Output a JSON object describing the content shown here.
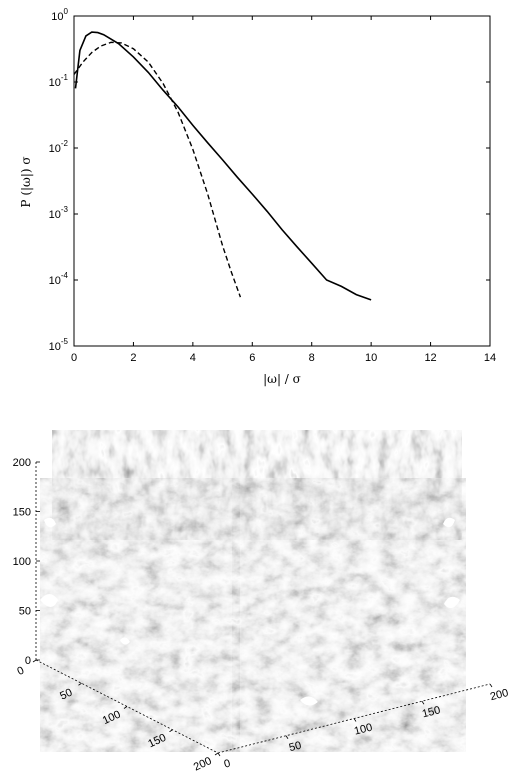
{
  "chart_data": [
    {
      "type": "line",
      "xlabel": "|ω| / σ",
      "ylabel": "P (|ω|) σ",
      "xlim": [
        0,
        14
      ],
      "ylim_log10": [
        -5,
        0
      ],
      "yscale": "log",
      "grid": false,
      "x_ticks": [
        "0",
        "2",
        "4",
        "6",
        "8",
        "10",
        "12",
        "14"
      ],
      "y_ticks": [
        {
          "base": "10",
          "exp": "0"
        },
        {
          "base": "10",
          "exp": "-1"
        },
        {
          "base": "10",
          "exp": "-2"
        },
        {
          "base": "10",
          "exp": "-3"
        },
        {
          "base": "10",
          "exp": "-4"
        },
        {
          "base": "10",
          "exp": "-5"
        }
      ],
      "series": [
        {
          "style": "solid",
          "x": [
            0.05,
            0.2,
            0.4,
            0.6,
            0.8,
            1.0,
            1.5,
            2.0,
            2.5,
            3.0,
            3.5,
            4.0,
            4.5,
            5.0,
            5.5,
            6.0,
            6.5,
            7.0,
            7.5,
            8.0,
            8.5,
            9.0,
            9.5,
            10.0
          ],
          "y": [
            0.08,
            0.3,
            0.5,
            0.57,
            0.56,
            0.52,
            0.38,
            0.24,
            0.14,
            0.075,
            0.042,
            0.022,
            0.012,
            0.0066,
            0.0036,
            0.002,
            0.0011,
            0.00058,
            0.00032,
            0.00018,
            0.0001,
            8e-05,
            6e-05,
            5e-05
          ]
        },
        {
          "style": "dashed",
          "x": [
            0.0,
            0.3,
            0.6,
            0.9,
            1.25,
            1.6,
            2.0,
            2.5,
            3.0,
            3.5,
            4.0,
            4.5,
            5.0,
            5.3,
            5.6
          ],
          "y": [
            0.13,
            0.2,
            0.28,
            0.35,
            0.4,
            0.39,
            0.32,
            0.2,
            0.095,
            0.035,
            0.0095,
            0.002,
            0.00033,
            0.00013,
            5.5e-05
          ]
        }
      ]
    },
    {
      "type": "surface3d",
      "axes": {
        "z_ticks": [
          "0",
          "50",
          "100",
          "150",
          "200"
        ],
        "left_ticks": [
          "0",
          "50",
          "100",
          "150",
          "200"
        ],
        "right_ticks": [
          "0",
          "50",
          "100",
          "150",
          "200"
        ]
      }
    }
  ]
}
